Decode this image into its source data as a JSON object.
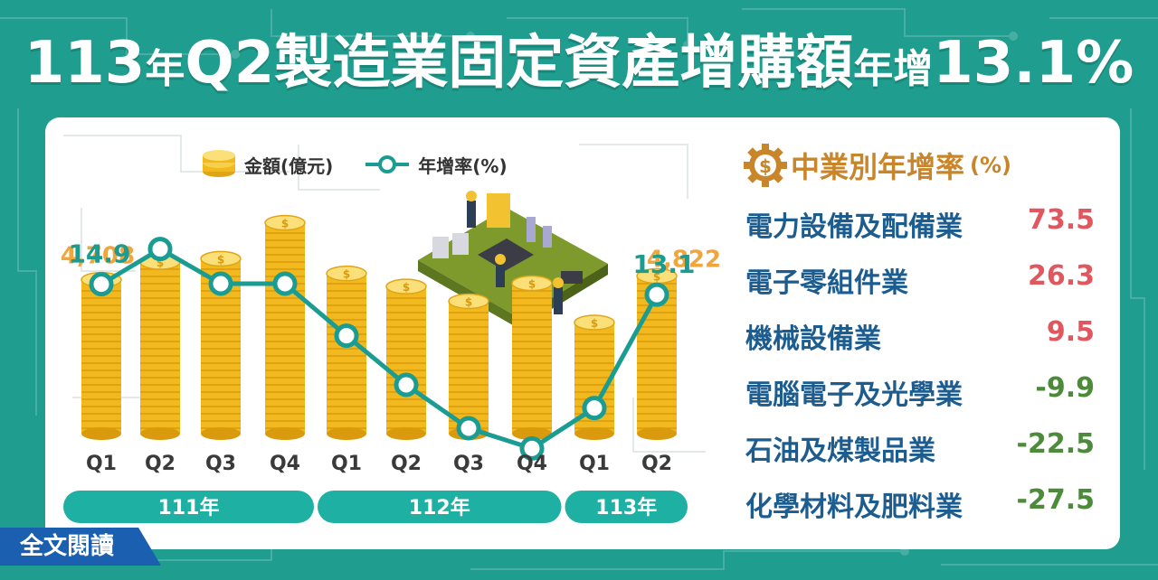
{
  "title": {
    "segments": [
      {
        "text": "113",
        "size": "big"
      },
      {
        "text": "年",
        "size": "small"
      },
      {
        "text": "Q2製造業固定資產增購額",
        "size": "big"
      },
      {
        "text": "年增",
        "size": "small"
      },
      {
        "text": "13.1%",
        "size": "big"
      }
    ]
  },
  "legend": {
    "amount": "金額(億元)",
    "growth": "年增率(%)"
  },
  "colors": {
    "background": "#1f9d8f",
    "coin": "#f2b91e",
    "line": "#1b9c93",
    "amount_label": "#f0a63a",
    "growth_label": "#1b9c93",
    "positive": "#e0575f",
    "negative": "#4c8b3a",
    "industry_name": "#1d5c8f",
    "title_accent": "#c8852a"
  },
  "chart_data": {
    "type": "bar",
    "categories": [
      "Q1",
      "Q2",
      "Q3",
      "Q4",
      "Q1",
      "Q2",
      "Q3",
      "Q4",
      "Q1",
      "Q2"
    ],
    "year_groups": [
      {
        "label": "111年",
        "count": 4
      },
      {
        "label": "112年",
        "count": 4
      },
      {
        "label": "113年",
        "count": 2
      }
    ],
    "series": [
      {
        "name": "金額(億元)",
        "type": "bar",
        "values": [
          4708,
          5250,
          5350,
          6450,
          4900,
          4500,
          4050,
          4600,
          3400,
          4822
        ]
      },
      {
        "name": "年增率(%)",
        "type": "line",
        "values": [
          14.9,
          21.0,
          15.0,
          15.0,
          6.0,
          -2.5,
          -10.0,
          -13.5,
          -6.5,
          13.1
        ]
      }
    ],
    "data_labels": {
      "amount": [
        {
          "index": 0,
          "text": "4,708"
        },
        {
          "index": 9,
          "text": "4,822"
        }
      ],
      "growth": [
        {
          "index": 0,
          "text": "14.9"
        },
        {
          "index": 9,
          "text": "13.1"
        }
      ]
    },
    "bar_ylim": [
      0,
      7500
    ],
    "line_ylim": [
      -20,
      30
    ]
  },
  "right_panel": {
    "title": "中業別年增率",
    "unit": "(%)",
    "icon": "gear-dollar-icon",
    "items": [
      {
        "name": "電力設備及配備業",
        "value": "73.5",
        "sign": "pos"
      },
      {
        "name": "電子零組件業",
        "value": "26.3",
        "sign": "pos"
      },
      {
        "name": "機械設備業",
        "value": "9.5",
        "sign": "pos"
      },
      {
        "name": "電腦電子及光學業",
        "value": "-9.9",
        "sign": "neg"
      },
      {
        "name": "石油及煤製品業",
        "value": "-22.5",
        "sign": "neg"
      },
      {
        "name": "化學材料及肥料業",
        "value": "-27.5",
        "sign": "neg"
      }
    ]
  },
  "read_more": "全文閱讀"
}
